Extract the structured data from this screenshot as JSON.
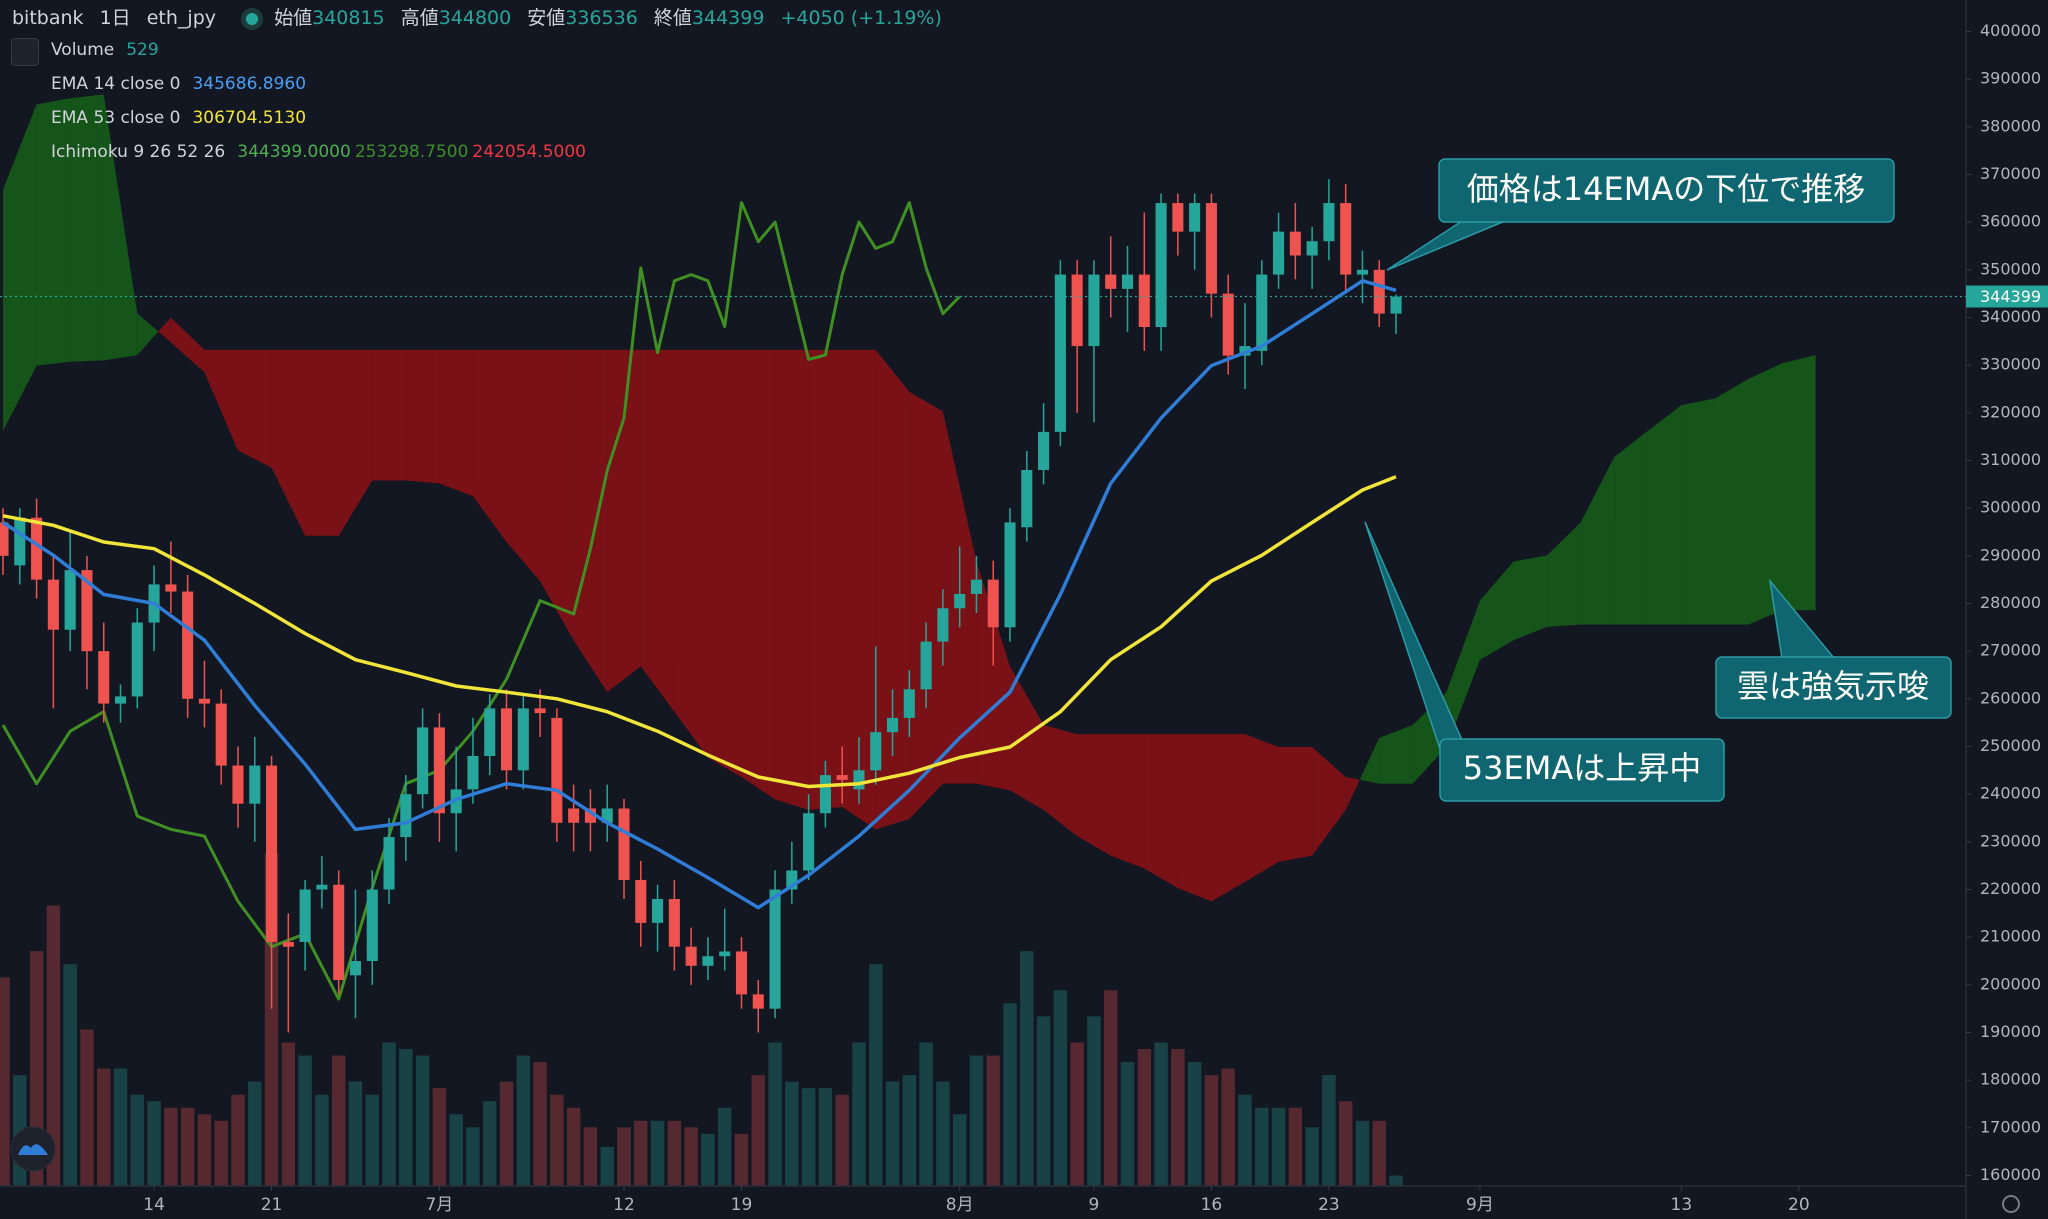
{
  "header": {
    "exchange": "bitbank",
    "interval": "1日",
    "symbol": "eth_jpy",
    "ohlc": [
      {
        "label": "始値",
        "value": "340815"
      },
      {
        "label": "高値",
        "value": "344800"
      },
      {
        "label": "安値",
        "value": "336536"
      },
      {
        "label": "終値",
        "value": "344399"
      }
    ],
    "change": "+4050 (+1.19%)"
  },
  "chart_data": {
    "type": "candlestick",
    "up_color": "#26a69a",
    "down_color": "#ef5350",
    "volume_up_color": "rgba(38,166,154,0.3)",
    "volume_down_color": "rgba(239,83,80,0.3)",
    "xlim": [
      4.82,
      121.96
    ],
    "xticks": [
      14,
      21,
      {
        "value": 31,
        "label": "7月"
      },
      {
        "value": 42,
        "label": "12"
      },
      {
        "value": 49,
        "label": "19"
      },
      {
        "value": 62,
        "label": "8月"
      },
      {
        "value": 70,
        "label": "9"
      },
      {
        "value": 77,
        "label": "16"
      },
      {
        "value": 84,
        "label": "23"
      },
      {
        "value": 93,
        "label": "9月"
      },
      {
        "value": 105,
        "label": "13"
      },
      {
        "value": 112,
        "label": "20"
      }
    ],
    "ylim": [
      157800,
      406600
    ],
    "yticks": [
      160000,
      170000,
      180000,
      190000,
      200000,
      210000,
      220000,
      230000,
      240000,
      250000,
      260000,
      270000,
      280000,
      290000,
      300000,
      310000,
      320000,
      330000,
      340000,
      350000,
      360000,
      370000,
      380000,
      390000,
      400000
    ],
    "last_price": 344399,
    "x": [
      5,
      6,
      7,
      8,
      9,
      10,
      11,
      12,
      13,
      14,
      15,
      16,
      17,
      18,
      19,
      20,
      21,
      22,
      23,
      24,
      25,
      26,
      27,
      28,
      29,
      30,
      31,
      32,
      33,
      34,
      35,
      36,
      37,
      38,
      39,
      40,
      41,
      42,
      43,
      44,
      45,
      46,
      47,
      48,
      49,
      50,
      51,
      52,
      53,
      54,
      55,
      56,
      57,
      58,
      59,
      60,
      61,
      62,
      63,
      64,
      65,
      66,
      67,
      68,
      69,
      70,
      71,
      72,
      73,
      74,
      75,
      76,
      77,
      78,
      79,
      80,
      81,
      82,
      83,
      84,
      85,
      86,
      87,
      88
    ],
    "open": [
      297000,
      288000,
      298000,
      285000,
      274500,
      287000,
      270000,
      259000,
      260500,
      276000,
      284000,
      282500,
      260000,
      259000,
      246000,
      238000,
      246000,
      209000,
      209000,
      220000,
      221000,
      202000,
      205000,
      220000,
      231000,
      240000,
      254000,
      236000,
      241000,
      248000,
      258000,
      245000,
      258000,
      256000,
      237000,
      237000,
      234000,
      237000,
      222000,
      213000,
      218000,
      208000,
      204000,
      206000,
      207000,
      198000,
      195000,
      220000,
      224000,
      236000,
      244000,
      241000,
      245000,
      253000,
      256000,
      262000,
      272000,
      279000,
      282000,
      285000,
      275000,
      296000,
      308000,
      316000,
      349000,
      334000,
      349000,
      346000,
      349000,
      338000,
      364000,
      358000,
      364000,
      345000,
      332000,
      333000,
      349000,
      358000,
      353000,
      356000,
      364000,
      349000,
      350000,
      340815
    ],
    "high": [
      300000,
      300000,
      302000,
      290000,
      295000,
      290000,
      276000,
      263000,
      279000,
      288000,
      293000,
      286000,
      268000,
      262000,
      250000,
      252000,
      248000,
      215000,
      222000,
      227000,
      224000,
      220000,
      224000,
      235000,
      244000,
      258000,
      257000,
      250000,
      256000,
      261000,
      262000,
      261000,
      262000,
      258000,
      242000,
      241000,
      242000,
      239000,
      226000,
      221000,
      222000,
      212000,
      210000,
      216000,
      210000,
      201000,
      224000,
      230000,
      240000,
      247000,
      250000,
      252000,
      271000,
      262000,
      266000,
      276000,
      283000,
      292000,
      290000,
      289000,
      300000,
      312000,
      322000,
      352000,
      352000,
      352000,
      357000,
      355000,
      362000,
      366000,
      366000,
      366000,
      366000,
      349000,
      343000,
      352000,
      362000,
      364000,
      359000,
      369000,
      368000,
      354000,
      352000,
      344800
    ],
    "low": [
      286000,
      284000,
      281000,
      258000,
      270000,
      262000,
      255000,
      255000,
      258000,
      270000,
      278000,
      256000,
      254000,
      242000,
      233000,
      230000,
      195000,
      190000,
      203000,
      216000,
      198000,
      193000,
      200000,
      217000,
      226000,
      237000,
      230000,
      228000,
      238000,
      244000,
      241000,
      241000,
      252000,
      230000,
      228000,
      228000,
      230000,
      218000,
      208000,
      207000,
      203000,
      200000,
      201000,
      203000,
      195000,
      190000,
      193000,
      217000,
      222000,
      233000,
      238000,
      238000,
      242000,
      248000,
      252000,
      258000,
      267000,
      275000,
      278000,
      267000,
      272000,
      293000,
      305000,
      313000,
      320000,
      318000,
      340000,
      337000,
      333000,
      333000,
      353000,
      350000,
      340000,
      328000,
      325000,
      330000,
      346000,
      348000,
      346000,
      352000,
      345000,
      343000,
      338000,
      336536
    ],
    "close": [
      290000,
      298000,
      285000,
      274500,
      287000,
      270000,
      259000,
      260500,
      276000,
      284000,
      282500,
      260000,
      259000,
      246000,
      238000,
      246000,
      209000,
      208000,
      220000,
      221000,
      201000,
      205000,
      220000,
      231000,
      240000,
      254000,
      236000,
      241000,
      248000,
      258000,
      245000,
      258000,
      257000,
      234000,
      234000,
      234000,
      237000,
      222000,
      213000,
      218000,
      208000,
      204000,
      206000,
      207000,
      198000,
      195000,
      220000,
      224000,
      236000,
      244000,
      243000,
      245000,
      253000,
      256000,
      262000,
      272000,
      279000,
      282000,
      285000,
      275000,
      297000,
      308000,
      316000,
      349000,
      334000,
      349000,
      346000,
      349000,
      338000,
      364000,
      358000,
      364000,
      345000,
      332000,
      334000,
      349000,
      358000,
      353000,
      356000,
      364000,
      349000,
      350000,
      340815,
      344399
    ],
    "volume_name": "Volume",
    "volume_ylim": [
      0,
      60000
    ],
    "volume": [
      10560,
      5610,
      11880,
      14190,
      11220,
      7920,
      5940,
      5940,
      4620,
      4290,
      3960,
      3960,
      3630,
      3300,
      4620,
      5280,
      16830,
      7260,
      6600,
      4620,
      6600,
      5280,
      4620,
      7260,
      6930,
      6600,
      4950,
      3630,
      2970,
      4290,
      5280,
      6600,
      6270,
      4620,
      3960,
      2970,
      1980,
      2970,
      3300,
      3300,
      3300,
      2970,
      2640,
      3960,
      2640,
      5610,
      7260,
      5280,
      4950,
      4950,
      4620,
      7260,
      11220,
      5280,
      5610,
      7260,
      5280,
      3630,
      6600,
      6600,
      9240,
      11880,
      8580,
      9900,
      7260,
      8580,
      9900,
      6270,
      6930,
      7260,
      6930,
      6270,
      5610,
      5940,
      4620,
      3960,
      3960,
      3960,
      2970,
      5610,
      4290,
      3300,
      3300,
      529
    ],
    "lines": [
      {
        "name": "EMA 14 close 0",
        "legend_value": "345686.8960",
        "color": "#2f7dd6",
        "x": [
          5,
          8,
          11,
          14,
          17,
          20,
          23,
          26,
          29,
          32,
          35,
          38,
          41,
          44,
          47,
          50,
          53,
          56,
          59,
          62,
          65,
          68,
          71,
          74,
          77,
          80,
          83,
          86,
          88
        ],
        "values": [
          297000,
          290100,
          281900,
          280000,
          272300,
          258600,
          246300,
          232600,
          234000,
          238900,
          242200,
          240800,
          234000,
          228500,
          222500,
          216200,
          223000,
          231200,
          240800,
          251800,
          261400,
          281900,
          305200,
          318900,
          329900,
          334000,
          340800,
          347700,
          345700
        ]
      },
      {
        "name": "EMA 53 close 0",
        "legend_value": "306704.5130",
        "color": "#f2e53a",
        "x": [
          5,
          8,
          11,
          14,
          17,
          20,
          23,
          26,
          29,
          32,
          35,
          38,
          41,
          44,
          47,
          50,
          53,
          56,
          59,
          62,
          65,
          68,
          71,
          74,
          77,
          80,
          83,
          86,
          88
        ],
        "values": [
          298400,
          296400,
          292900,
          291500,
          286000,
          280000,
          273700,
          268200,
          265500,
          262700,
          261400,
          260000,
          257300,
          253200,
          248200,
          243600,
          241600,
          242200,
          244400,
          247700,
          249900,
          257300,
          268200,
          275100,
          284700,
          290100,
          297000,
          303800,
          306600
        ]
      }
    ],
    "ichimoku": {
      "name": "Ichimoku 9 26 52 26",
      "legend_values": [
        "344399.0000",
        "253298.7500",
        "242054.5000"
      ],
      "lagging_color": "#3f8f22",
      "lagging_x": [
        5,
        7,
        9,
        11,
        13,
        15,
        17,
        19,
        21,
        23,
        25,
        27,
        29,
        31,
        33,
        35,
        37,
        39,
        40,
        41,
        42,
        43,
        44,
        45,
        46,
        47,
        48,
        49,
        50,
        51,
        53,
        54,
        55,
        56,
        57,
        58,
        59,
        60,
        61,
        62
      ],
      "lagging": [
        254500,
        242200,
        253200,
        257300,
        235400,
        232600,
        231200,
        217500,
        208000,
        210700,
        197000,
        220300,
        242200,
        245000,
        253200,
        264100,
        280600,
        277800,
        291500,
        307900,
        318900,
        350400,
        332600,
        347700,
        349000,
        347700,
        338100,
        364100,
        355900,
        360000,
        331200,
        332100,
        349000,
        360000,
        354500,
        355900,
        364100,
        350400,
        340800,
        344399
      ],
      "cloud_up_color": "rgba(22,110,22,0.72)",
      "cloud_down_color": "rgba(150,16,20,0.78)",
      "cloud_x": [
        5,
        7,
        9,
        11,
        13,
        15,
        17,
        19,
        21,
        23,
        25,
        27,
        29,
        31,
        33,
        35,
        37,
        39,
        41,
        43,
        45,
        47,
        49,
        51,
        53,
        55,
        57,
        59,
        61,
        63,
        65,
        67,
        69,
        71,
        73,
        75,
        77,
        79,
        81,
        83,
        85,
        87,
        89,
        91,
        93,
        95,
        97,
        99,
        101,
        103,
        105,
        107,
        109,
        111,
        113
      ],
      "span_a": [
        366800,
        384700,
        386000,
        386800,
        340800,
        334800,
        328500,
        312100,
        308500,
        294200,
        294200,
        305800,
        305800,
        305200,
        302500,
        292900,
        284700,
        272300,
        261400,
        266800,
        257300,
        247700,
        243600,
        238900,
        236700,
        237300,
        232600,
        234800,
        242200,
        242200,
        240800,
        236700,
        231200,
        227100,
        224400,
        220300,
        217500,
        221600,
        225800,
        227100,
        236700,
        251800,
        254500,
        261400,
        280600,
        288800,
        290100,
        297000,
        310700,
        316200,
        321600,
        323000,
        327100,
        330400,
        332100
      ],
      "span_b": [
        316200,
        329900,
        330700,
        331000,
        332100,
        340000,
        333200,
        333200,
        333200,
        333200,
        333200,
        333200,
        333200,
        333200,
        333200,
        333200,
        333200,
        333200,
        333200,
        333200,
        333200,
        333200,
        333200,
        333200,
        333200,
        333200,
        333200,
        324400,
        320300,
        288800,
        266800,
        254500,
        252600,
        252600,
        252600,
        252600,
        252600,
        252600,
        249900,
        249900,
        243600,
        242200,
        242200,
        249900,
        268200,
        272300,
        275100,
        275600,
        275600,
        275600,
        275600,
        275600,
        275600,
        278600,
        278600
      ]
    },
    "annotations": [
      "価格は14EMAの下位で推移",
      "雲は強気示唆",
      "53EMAは上昇中"
    ]
  }
}
